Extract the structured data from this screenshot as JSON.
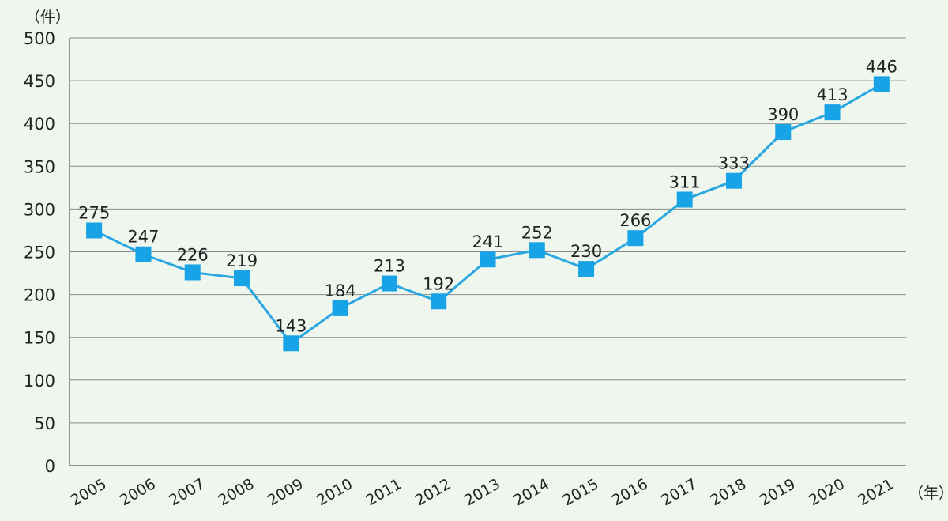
{
  "chart_data": {
    "type": "line",
    "x_unit_label": "（年）",
    "y_unit_label": "（件）",
    "categories": [
      "2005",
      "2006",
      "2007",
      "2008",
      "2009",
      "2010",
      "2011",
      "2012",
      "2013",
      "2014",
      "2015",
      "2016",
      "2017",
      "2018",
      "2019",
      "2020",
      "2021"
    ],
    "values": [
      275,
      247,
      226,
      219,
      143,
      184,
      213,
      192,
      241,
      252,
      230,
      266,
      311,
      333,
      390,
      413,
      446
    ],
    "ylim": [
      0,
      500
    ],
    "yticks": [
      0,
      50,
      100,
      150,
      200,
      250,
      300,
      350,
      400,
      450,
      500
    ],
    "grid": true,
    "data_labels": true,
    "line_color": "#2aa7e0",
    "marker_color": "#17a3e6",
    "marker": "square"
  }
}
